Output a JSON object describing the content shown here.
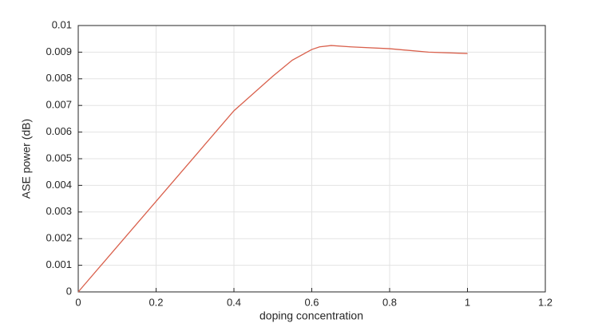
{
  "chart_data": {
    "type": "line",
    "x_label": "doping concentration",
    "y_label": "ASE power (dB)",
    "x": [
      0,
      0.1,
      0.2,
      0.3,
      0.4,
      0.5,
      0.55,
      0.6,
      0.62,
      0.65,
      0.7,
      0.8,
      0.9,
      1.0
    ],
    "series": [
      {
        "color": "#d9604c",
        "values": [
          0,
          0.0017,
          0.0034,
          0.0051,
          0.0068,
          0.0081,
          0.0087,
          0.0091,
          0.0092,
          0.00925,
          0.0092,
          0.00913,
          0.009,
          0.00895
        ]
      }
    ],
    "xlim": [
      0,
      1.2
    ],
    "xticks": [
      0,
      0.2,
      0.4,
      0.6,
      0.8,
      1,
      1.2
    ],
    "ylim": [
      0,
      0.01
    ],
    "yticks": [
      0,
      0.001,
      0.002,
      0.003,
      0.004,
      0.005,
      0.006,
      0.007,
      0.008,
      0.009,
      0.01
    ],
    "grid": true
  }
}
